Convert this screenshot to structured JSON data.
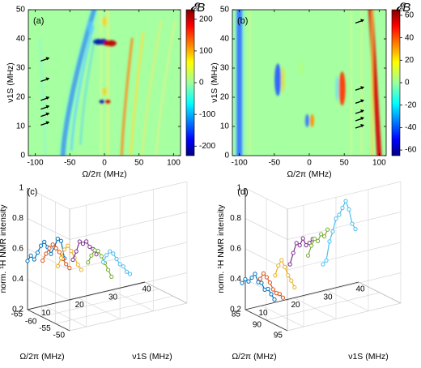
{
  "chart_data": [
    {
      "panel": "(a)",
      "type": "heatmap",
      "xlabel": "Ω/2π (MHz)",
      "ylabel": "ν1S (MHz)",
      "xlim": [
        -110,
        110
      ],
      "ylim": [
        0,
        50
      ],
      "xticks": [
        "-100",
        "-50",
        "0",
        "50",
        "100"
      ],
      "yticks": [
        "0",
        "10",
        "20",
        "30",
        "40",
        "50"
      ],
      "colorbar": {
        "label": "𝓔B",
        "min": -230,
        "max": 230,
        "ticks": [
          "200",
          "100",
          "0",
          "-100",
          "-200"
        ]
      },
      "arrows_at_nu1s": [
        11,
        14,
        16.5,
        19.5,
        26,
        33
      ]
    },
    {
      "panel": "(b)",
      "type": "heatmap",
      "xlabel": "Ω/2π (MHz)",
      "ylabel": "ν1S (MHz)",
      "xlim": [
        -110,
        110
      ],
      "ylim": [
        0,
        50
      ],
      "xticks": [
        "-100",
        "-50",
        "0",
        "50",
        "100"
      ],
      "yticks": [
        "0",
        "10",
        "20",
        "30",
        "40",
        "50"
      ],
      "colorbar": {
        "label": "𝓔B",
        "min": -65,
        "max": 65,
        "ticks": [
          "60",
          "40",
          "20",
          "0",
          "-20",
          "-40",
          "-60"
        ]
      },
      "arrows_at_nu1s": [
        10,
        12.5,
        15,
        18.5,
        23,
        46
      ]
    },
    {
      "panel": "(c)",
      "type": "line",
      "zlabel": "norm. ¹H NMR intensity",
      "xlabel": "ν1S (MHz)",
      "ylabel": "Ω/2π (MHz)",
      "zlim": [
        0.2,
        1
      ],
      "zticks": [
        "0.2",
        "0.4",
        "0.6",
        "0.8",
        "1"
      ],
      "xticks": [
        "10",
        "20",
        "30",
        "40"
      ],
      "yticks": [
        "-50",
        "-55",
        "-60",
        "-65"
      ],
      "series": [
        {
          "color": "#0072BD",
          "x": [
            5,
            6,
            7,
            8,
            9,
            10,
            11,
            12,
            13,
            14,
            15,
            16
          ],
          "y": -65,
          "values": [
            0.52,
            0.55,
            0.52,
            0.56,
            0.6,
            0.62,
            0.58,
            0.53,
            0.57,
            0.62,
            0.6,
            0.48
          ]
        },
        {
          "color": "#D95319",
          "x": [
            7,
            8,
            9,
            10,
            11,
            12,
            13,
            14,
            15
          ],
          "y": -62,
          "values": [
            0.54,
            0.58,
            0.61,
            0.63,
            0.6,
            0.57,
            0.52,
            0.48,
            0.45
          ]
        },
        {
          "color": "#EDB120",
          "x": [
            9,
            10,
            11,
            12,
            13,
            14,
            15,
            16
          ],
          "y": -59,
          "values": [
            0.52,
            0.57,
            0.62,
            0.64,
            0.6,
            0.55,
            0.5,
            0.46
          ]
        },
        {
          "color": "#7E2F8E",
          "x": [
            11,
            12,
            13,
            14,
            15,
            16,
            17,
            18
          ],
          "y": -56,
          "values": [
            0.58,
            0.63,
            0.69,
            0.67,
            0.68,
            0.64,
            0.62,
            0.58
          ]
        },
        {
          "color": "#77AC30",
          "x": [
            13,
            14,
            15,
            16,
            17,
            18,
            19,
            20
          ],
          "y": -53,
          "values": [
            0.58,
            0.62,
            0.65,
            0.64,
            0.6,
            0.55,
            0.5,
            0.45
          ]
        },
        {
          "color": "#4DBEEE",
          "x": [
            15,
            16,
            17,
            18,
            19,
            20,
            21,
            22,
            23
          ],
          "y": -50,
          "values": [
            0.6,
            0.64,
            0.66,
            0.64,
            0.6,
            0.56,
            0.54,
            0.5,
            0.48
          ]
        }
      ]
    },
    {
      "panel": "(d)",
      "type": "line",
      "zlabel": "norm. ¹H NMR intensity",
      "xlabel": "ν1S (MHz)",
      "ylabel": "Ω/2π (MHz)",
      "zlim": [
        0.2,
        1
      ],
      "zticks": [
        "0.2",
        "0.4",
        "0.6",
        "0.8",
        "1"
      ],
      "xticks": [
        "10",
        "20",
        "30",
        "40"
      ],
      "yticks": [
        "95",
        "90",
        "85"
      ],
      "series": [
        {
          "color": "#0072BD",
          "x": [
            4,
            5,
            6,
            7,
            8,
            9,
            10,
            11,
            12,
            13,
            14
          ],
          "y": 85,
          "values": [
            0.38,
            0.4,
            0.38,
            0.4,
            0.42,
            0.36,
            0.35,
            0.3,
            0.3,
            0.26,
            0.22
          ]
        },
        {
          "color": "#D95319",
          "x": [
            7,
            8,
            9,
            10,
            11,
            12,
            13,
            14
          ],
          "y": 87,
          "values": [
            0.42,
            0.45,
            0.42,
            0.38,
            0.33,
            0.3,
            0.29,
            0.26
          ]
        },
        {
          "color": "#EDB120",
          "x": [
            9,
            10,
            11,
            12,
            13,
            14,
            15
          ],
          "y": 89,
          "values": [
            0.46,
            0.52,
            0.55,
            0.5,
            0.44,
            0.4,
            0.35
          ]
        },
        {
          "color": "#7E2F8E",
          "x": [
            11,
            12,
            13,
            14,
            15,
            16,
            17,
            18
          ],
          "y": 91,
          "values": [
            0.55,
            0.62,
            0.68,
            0.66,
            0.7,
            0.65,
            0.66,
            0.68
          ]
        },
        {
          "color": "#77AC30",
          "x": [
            14,
            15,
            16,
            17,
            18,
            19,
            20
          ],
          "y": 93,
          "values": [
            0.62,
            0.68,
            0.72,
            0.7,
            0.74,
            0.72,
            0.76
          ]
        },
        {
          "color": "#4DBEEE",
          "x": [
            16,
            17,
            18,
            19,
            20,
            21,
            22,
            23,
            24,
            25,
            26
          ],
          "y": 95,
          "values": [
            0.58,
            0.6,
            0.72,
            0.78,
            0.86,
            0.88,
            0.92,
            0.96,
            0.9,
            0.8,
            0.76
          ]
        }
      ]
    }
  ]
}
